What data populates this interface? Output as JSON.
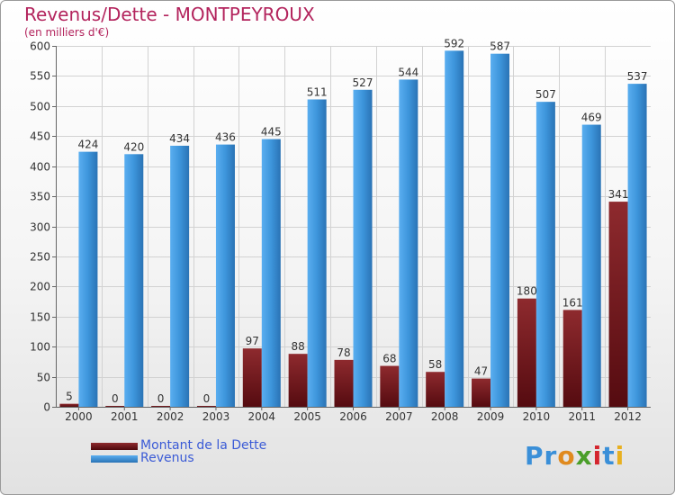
{
  "title": "Revenus/Dette - MONTPEYROUX",
  "unit": "(en milliers d'€)",
  "logo": "Proxiti",
  "colors": {
    "dette": "#7a1a1e",
    "revenus": "#3d95db",
    "title": "#b3245d",
    "legend_text": "#3b5bd6"
  },
  "chart_data": {
    "type": "bar",
    "title": "Revenus/Dette - MONTPEYROUX",
    "ylabel": "(en milliers d'€)",
    "ylim": [
      0,
      600
    ],
    "yticks": [
      0,
      50,
      100,
      150,
      200,
      250,
      300,
      350,
      400,
      450,
      500,
      550,
      600
    ],
    "grid": true,
    "legend_position": "bottom-left",
    "categories": [
      "2000",
      "2001",
      "2002",
      "2003",
      "2004",
      "2005",
      "2006",
      "2007",
      "2008",
      "2009",
      "2010",
      "2011",
      "2012"
    ],
    "series": [
      {
        "name": "Montant de la Dette",
        "values": [
          5,
          0,
          0,
          0,
          97,
          88,
          78,
          68,
          58,
          47,
          180,
          161,
          341
        ]
      },
      {
        "name": "Revenus",
        "values": [
          424,
          420,
          434,
          436,
          445,
          511,
          527,
          544,
          592,
          587,
          507,
          469,
          537
        ]
      }
    ]
  }
}
